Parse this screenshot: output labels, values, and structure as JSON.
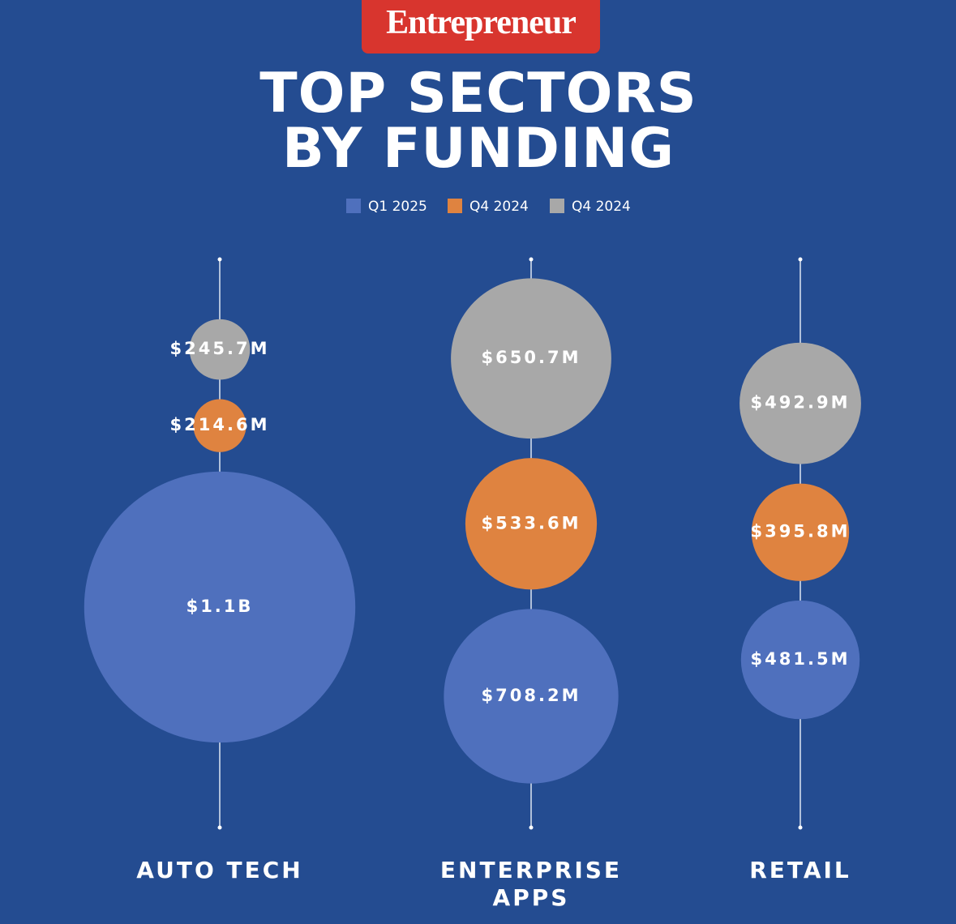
{
  "brand": "Entrepreneur",
  "chart_data": {
    "type": "bubble-stack",
    "title": "TOP SECTORS BY FUNDING",
    "categories": [
      "AUTO TECH",
      "ENTERPRISE APPS",
      "RETAIL"
    ],
    "series": [
      {
        "name": "Q1 2025",
        "color": "#4f70bd",
        "values": [
          1100,
          708.2,
          481.5
        ],
        "value_labels": [
          "$1.1B",
          "$708.2M",
          "$481.5M"
        ]
      },
      {
        "name": "Q4 2024",
        "color": "#df8340",
        "values": [
          214.6,
          533.6,
          395.8
        ],
        "value_labels": [
          "$214.6M",
          "$533.6M",
          "$395.8M"
        ]
      },
      {
        "name": "Q4 2024",
        "color": "#a8a8a8",
        "values": [
          245.7,
          650.7,
          492.9
        ],
        "value_labels": [
          "$245.7M",
          "$650.7M",
          "$492.9M"
        ]
      }
    ]
  }
}
